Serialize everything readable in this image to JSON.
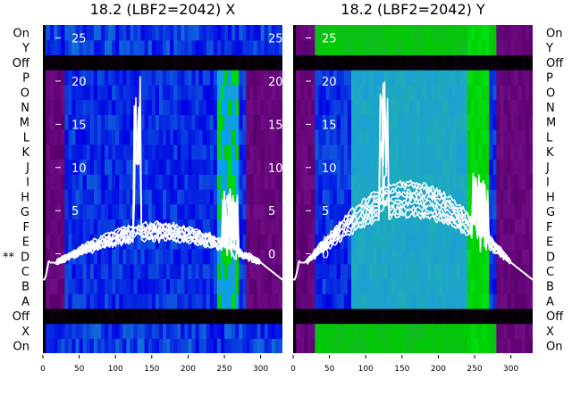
{
  "chart_data": [
    {
      "type": "heatmap",
      "title": "18.2 (LBF2=2042) X",
      "x_ticks": [
        0,
        50,
        100,
        150,
        200,
        250,
        300
      ],
      "xlim": [
        0,
        330
      ],
      "y_ticks": [
        0,
        5,
        10,
        15,
        20,
        25
      ],
      "ylim": [
        -11.5,
        26.5
      ],
      "row_labels": [
        "On",
        "X",
        "Off",
        "A",
        "B",
        "C",
        "D",
        "E",
        "F",
        "G",
        "H",
        "I",
        "J",
        "K",
        "L",
        "M",
        "N",
        "O",
        "P",
        "Off",
        "Y",
        "On"
      ],
      "row_markers": [
        {
          "row": "D",
          "text": "**"
        }
      ],
      "heatmap_colors": {
        "low": "#5a006e",
        "mid": "#0000e6",
        "high": "#00cc00",
        "cyan": "#1a9fd6",
        "off": "#000000"
      },
      "trace_color": "#ffffff",
      "x_spike": [
        125,
        135
      ],
      "x_burst": [
        240,
        270
      ],
      "profile_peak": 3.8
    },
    {
      "type": "heatmap",
      "title": "18.2 (LBF2=2042) Y",
      "x_ticks": [
        0,
        50,
        100,
        150,
        200,
        250,
        300
      ],
      "xlim": [
        0,
        330
      ],
      "y_ticks": [
        0,
        5,
        10,
        15,
        20,
        25
      ],
      "ylim": [
        -11.5,
        26.5
      ],
      "row_labels": [
        "On",
        "X",
        "Off",
        "A",
        "B",
        "C",
        "D",
        "E",
        "F",
        "G",
        "H",
        "I",
        "J",
        "K",
        "L",
        "M",
        "N",
        "O",
        "P",
        "Off",
        "Y",
        "On"
      ],
      "row_markers": [],
      "heatmap_colors": {
        "low": "#5a006e",
        "mid": "#0000e6",
        "high": "#00cc00",
        "cyan": "#1a9fd6",
        "off": "#000000"
      },
      "trace_color": "#ffffff",
      "x_spike": [
        120,
        130
      ],
      "x_burst": [
        240,
        270
      ],
      "profile_peak": 7.8
    }
  ]
}
